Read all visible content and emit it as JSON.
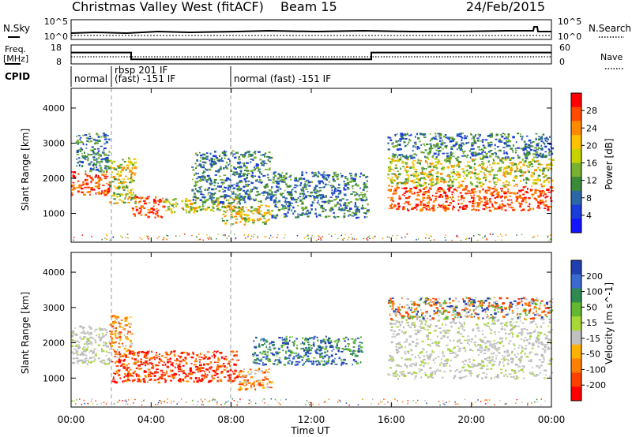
{
  "header": {
    "station": "Christmas Valley West (fitACF)",
    "beam": "Beam 15",
    "date": "24/Feb/2015"
  },
  "noise_panel": {
    "left_label": "N.Sky",
    "right_label": "N.Search",
    "left_ticks": [
      "10^5",
      "10^0"
    ],
    "right_ticks": [
      "10^5",
      "10^0"
    ]
  },
  "freq_panel": {
    "left_label_1": "Freq.",
    "left_label_2": "[MHz]",
    "right_label": "Nave",
    "left_ticks": [
      "18",
      "8"
    ],
    "right_ticks": [
      "60",
      "0"
    ],
    "freq_mhz_steps": [
      {
        "t": 0.0,
        "v": 14
      },
      {
        "t": 3.0,
        "v": 10.4
      },
      {
        "t": 15.0,
        "v": 14
      }
    ]
  },
  "cpid": {
    "label": "CPID",
    "segments": [
      {
        "start": 0.0,
        "end": 1.85,
        "text_1": "normal",
        "text_2": ""
      },
      {
        "start": 1.85,
        "end": 8.0,
        "text_1": "rbsp 201 IF",
        "text_2": "(fast) -151 IF"
      },
      {
        "start": 8.0,
        "end": 24.0,
        "text_1": "normal (fast) -151 IF",
        "text_2": ""
      }
    ]
  },
  "axes": {
    "xlabel": "Time UT",
    "x_ticks": [
      "00:00",
      "04:00",
      "08:00",
      "12:00",
      "16:00",
      "20:00",
      "00:00"
    ],
    "ylabel": "Slant Range [km]",
    "y_ticks": [
      "1000",
      "2000",
      "3000",
      "4000"
    ]
  },
  "power_colorbar": {
    "title": "Power [dB]",
    "ticks": [
      "28",
      "24",
      "20",
      "16",
      "12",
      "8",
      "4"
    ],
    "colors": [
      "#ff0000",
      "#ff4a00",
      "#ff8a00",
      "#ffc200",
      "#c8d200",
      "#78b030",
      "#3a8a3a",
      "#2a66a8",
      "#1a3cd8",
      "#1414ff"
    ]
  },
  "velocity_colorbar": {
    "title": "Velocity [m s^-1]",
    "ticks": [
      "200",
      "100",
      "50",
      "15",
      "-15",
      "-50",
      "-100",
      "-200"
    ],
    "colors": [
      "#2040b0",
      "#3a6ad0",
      "#2e8a50",
      "#62b830",
      "#a8d838",
      "#c0c0c0",
      "#ffb000",
      "#ff8000",
      "#ff4000",
      "#ff0000"
    ]
  },
  "chart_data": {
    "type": "heatmap",
    "xlim_hours": [
      0,
      24
    ],
    "ylim_km": [
      180,
      4560
    ],
    "dashed_time_markers_hours": [
      1.85,
      8.0
    ],
    "power_scatter_regions": [
      {
        "t0": 0.0,
        "t1": 1.9,
        "r0": 1550,
        "r1": 2200,
        "level": "high"
      },
      {
        "t0": 0.2,
        "t1": 1.9,
        "r0": 2200,
        "r1": 3300,
        "level": "low"
      },
      {
        "t0": 1.9,
        "t1": 3.2,
        "r0": 1300,
        "r1": 2600,
        "level": "mid"
      },
      {
        "t0": 3.0,
        "t1": 4.6,
        "r0": 900,
        "r1": 1500,
        "level": "high"
      },
      {
        "t0": 4.6,
        "t1": 8.5,
        "r0": 1050,
        "r1": 1450,
        "level": "mid"
      },
      {
        "t0": 7.5,
        "t1": 10.0,
        "r0": 700,
        "r1": 1250,
        "level": "mid"
      },
      {
        "t0": 6.0,
        "t1": 10.0,
        "r0": 1300,
        "r1": 2800,
        "level": "low"
      },
      {
        "t0": 10.0,
        "t1": 14.8,
        "r0": 900,
        "r1": 2200,
        "level": "low"
      },
      {
        "t0": 15.8,
        "t1": 24.0,
        "r0": 1100,
        "r1": 1800,
        "level": "high"
      },
      {
        "t0": 15.8,
        "t1": 24.0,
        "r0": 1800,
        "r1": 2600,
        "level": "mid"
      },
      {
        "t0": 15.8,
        "t1": 24.0,
        "r0": 2600,
        "r1": 3300,
        "level": "low"
      }
    ],
    "velocity_scatter_regions": [
      {
        "t0": 0.0,
        "t1": 1.9,
        "r0": 1400,
        "r1": 2500,
        "level": "near_zero"
      },
      {
        "t0": 1.9,
        "t1": 3.0,
        "r0": 1600,
        "r1": 2800,
        "level": "orange"
      },
      {
        "t0": 2.0,
        "t1": 8.3,
        "r0": 900,
        "r1": 1800,
        "level": "strong_away"
      },
      {
        "t0": 8.3,
        "t1": 10.0,
        "r0": 700,
        "r1": 1300,
        "level": "orange"
      },
      {
        "t0": 9.0,
        "t1": 14.5,
        "r0": 1400,
        "r1": 2200,
        "level": "toward"
      },
      {
        "t0": 15.8,
        "t1": 24.0,
        "r0": 1000,
        "r1": 2700,
        "level": "near_zero"
      },
      {
        "t0": 15.8,
        "t1": 24.0,
        "r0": 2700,
        "r1": 3300,
        "level": "mixed"
      }
    ]
  }
}
